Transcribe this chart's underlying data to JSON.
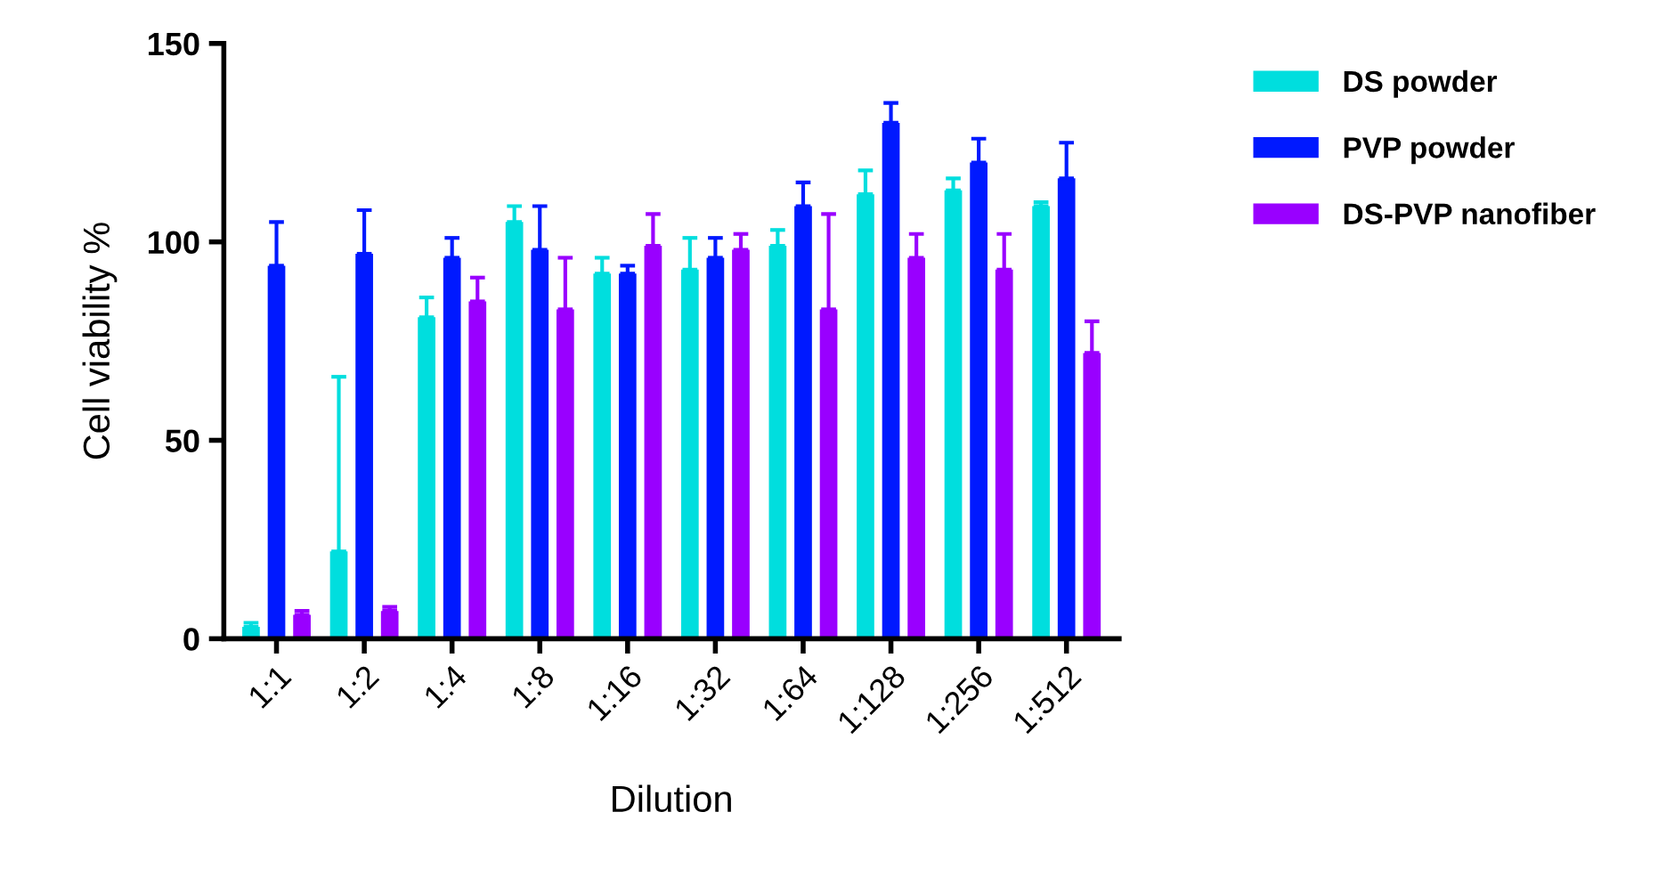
{
  "chart_data": {
    "type": "bar",
    "xlabel": "Dilution",
    "ylabel": "Cell viability %",
    "categories": [
      "1:1",
      "1:2",
      "1:4",
      "1:8",
      "1:16",
      "1:32",
      "1:64",
      "1:128",
      "1:256",
      "1:512"
    ],
    "series": [
      {
        "name": "DS powder",
        "color": "#00dede",
        "values": [
          3,
          22,
          81,
          105,
          92,
          93,
          99,
          112,
          113,
          109
        ],
        "errors": [
          [
            3,
            4
          ],
          [
            22,
            66
          ],
          [
            81,
            86
          ],
          [
            105,
            109
          ],
          [
            92,
            96
          ],
          [
            93,
            101
          ],
          [
            99,
            103
          ],
          [
            112,
            118
          ],
          [
            113,
            116
          ],
          [
            109,
            110
          ]
        ]
      },
      {
        "name": "PVP powder",
        "color": "#0019ff",
        "values": [
          94,
          97,
          96,
          98,
          92,
          96,
          109,
          130,
          120,
          116
        ],
        "errors": [
          [
            94,
            105
          ],
          [
            97,
            108
          ],
          [
            96,
            101
          ],
          [
            98,
            109
          ],
          [
            92,
            94
          ],
          [
            96,
            101
          ],
          [
            109,
            115
          ],
          [
            130,
            135
          ],
          [
            120,
            126
          ],
          [
            116,
            125
          ]
        ]
      },
      {
        "name": "DS-PVP nanofiber",
        "color": "#9900ff",
        "values": [
          6,
          7,
          85,
          83,
          99,
          98,
          83,
          96,
          93,
          72
        ],
        "errors": [
          [
            6,
            7
          ],
          [
            7,
            8
          ],
          [
            85,
            91
          ],
          [
            83,
            96
          ],
          [
            99,
            107
          ],
          [
            98,
            102
          ],
          [
            83,
            107
          ],
          [
            96,
            102
          ],
          [
            93,
            102
          ],
          [
            72,
            80
          ]
        ]
      }
    ],
    "ylim": [
      0,
      150
    ],
    "yticks": [
      0,
      50,
      100,
      150
    ],
    "grid": false,
    "legend": "right"
  }
}
